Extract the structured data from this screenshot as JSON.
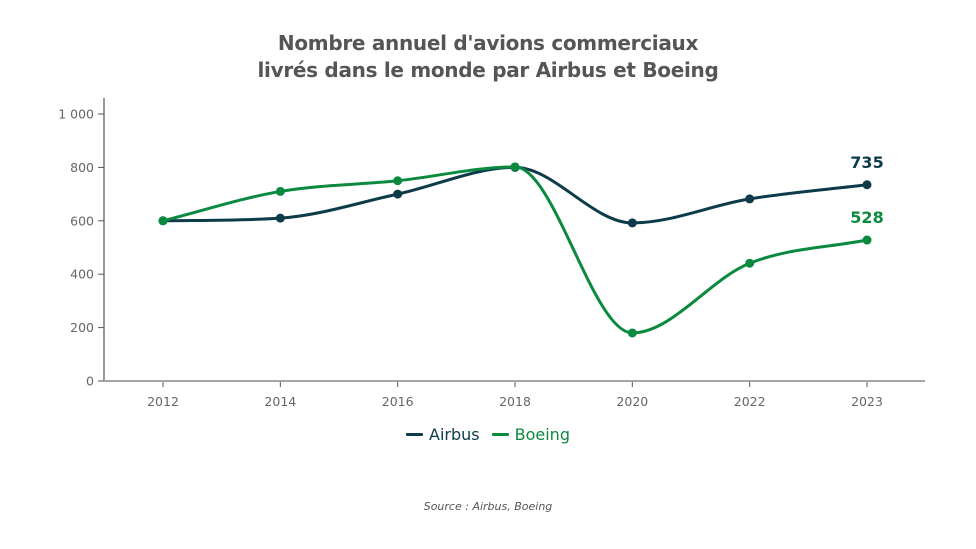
{
  "chart_data": {
    "type": "line",
    "title": "Nombre annuel d'avions commerciaux livrés dans le monde par Airbus et Boeing",
    "title_lines": [
      "Nombre annuel d'avions commerciaux",
      "livrés dans le monde par Airbus et Boeing"
    ],
    "xlabel": "",
    "ylabel": "",
    "categories": [
      "2012",
      "2014",
      "2016",
      "2018",
      "2020",
      "2022",
      "2023"
    ],
    "ylim": [
      0,
      1000
    ],
    "yticks": [
      0,
      200,
      400,
      600,
      800,
      1000
    ],
    "ytick_labels": [
      "0",
      "200",
      "400",
      "600",
      "800",
      "1 000"
    ],
    "grid": false,
    "smooth": true,
    "legend_position": "bottom-center",
    "series": [
      {
        "name": "Airbus",
        "color": "#0d3b4a",
        "values": [
          600,
          610,
          700,
          800,
          592,
          682,
          735
        ],
        "end_label": "735"
      },
      {
        "name": "Boeing",
        "color": "#0b8a3f",
        "values": [
          600,
          710,
          750,
          802,
          180,
          441,
          528
        ],
        "end_label": "528"
      }
    ],
    "source": "Source : Airbus, Boeing"
  }
}
